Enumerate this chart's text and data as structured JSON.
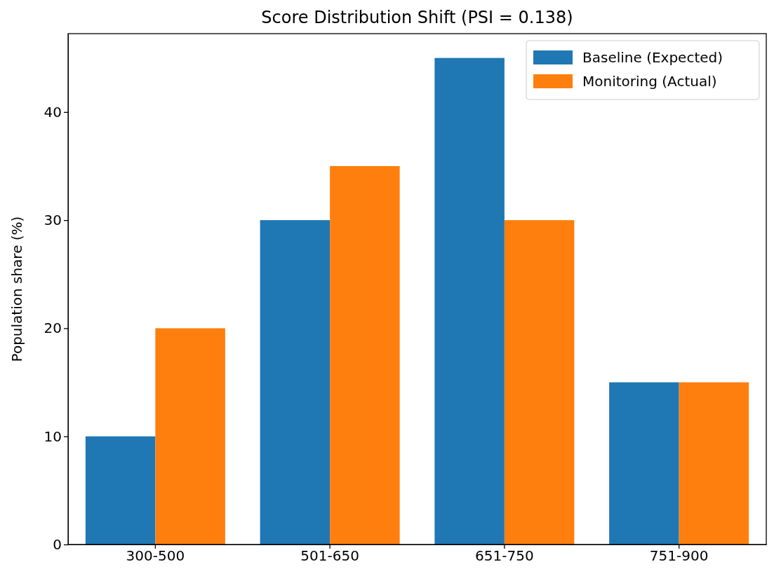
{
  "chart_data": {
    "type": "bar",
    "title": "Score Distribution Shift (PSI = 0.138)",
    "ylabel": "Population share (%)",
    "categories": [
      "300-500",
      "501-650",
      "651-750",
      "751-900"
    ],
    "series": [
      {
        "name": "Baseline (Expected)",
        "color": "#1f77b4",
        "values": [
          10,
          30,
          45,
          15
        ]
      },
      {
        "name": "Monitoring (Actual)",
        "color": "#ff7f0e",
        "values": [
          20,
          35,
          30,
          15
        ]
      }
    ],
    "ylim": [
      0,
      47.25
    ],
    "yticks": [
      0,
      10,
      20,
      30,
      40
    ],
    "grid": false,
    "legend": "top right"
  }
}
